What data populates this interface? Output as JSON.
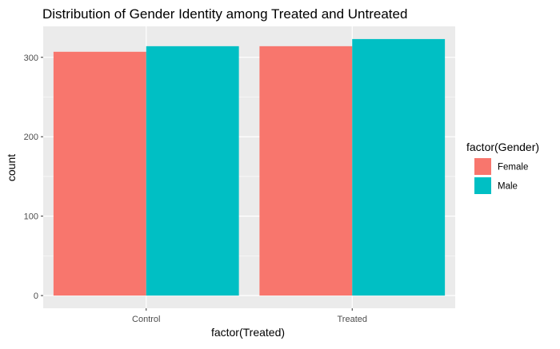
{
  "chart_data": {
    "type": "bar",
    "title": "Distribution of Gender Identity among Treated and Untreated",
    "xlabel": "factor(Treated)",
    "ylabel": "count",
    "categories": [
      "Control",
      "Treated"
    ],
    "series": [
      {
        "name": "Female",
        "values": [
          307,
          314
        ],
        "color": "#F8766D"
      },
      {
        "name": "Male",
        "values": [
          314,
          323
        ],
        "color": "#00BFC4"
      }
    ],
    "ylim": [
      -16,
      339
    ],
    "yticks": [
      0,
      100,
      200,
      300
    ],
    "grid": true,
    "background": "#EBEBEB",
    "legend": {
      "title": "factor(Gender)",
      "position": "right"
    }
  }
}
